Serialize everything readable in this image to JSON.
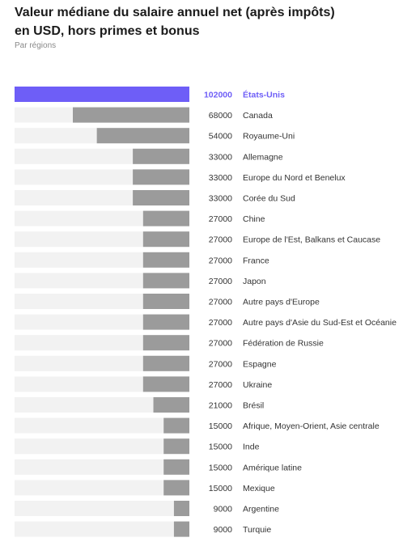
{
  "header": {
    "title_line1": "Valeur médiane du salaire annuel net (après impôts)",
    "title_line2": "en USD, hors primes et bonus",
    "subtitle": "Par régions"
  },
  "colors": {
    "highlight": "#6e5ef7",
    "bar": "#9b9b9b",
    "track": "#f2f2f2",
    "label": "#333333"
  },
  "chart_data": {
    "type": "bar",
    "orientation": "horizontal",
    "bar_direction": "right-to-left",
    "title": "Valeur médiane du salaire annuel net (après impôts) en USD, hors primes et bonus",
    "subtitle": "Par régions",
    "xlim": [
      0,
      102000
    ],
    "grid": false,
    "highlight_index": 0,
    "categories": [
      "États-Unis",
      "Canada",
      "Royaume-Uni",
      "Allemagne",
      "Europe du Nord et Benelux",
      "Corée du Sud",
      "Chine",
      "Europe de l'Est, Balkans et Caucase",
      "France",
      "Japon",
      "Autre pays d'Europe",
      "Autre pays d'Asie du Sud-Est et Océanie",
      "Fédération de Russie",
      "Espagne",
      "Ukraine",
      "Brésil",
      "Afrique, Moyen-Orient, Asie centrale",
      "Inde",
      "Amérique latine",
      "Mexique",
      "Argentine",
      "Turquie"
    ],
    "values": [
      102000,
      68000,
      54000,
      33000,
      33000,
      33000,
      27000,
      27000,
      27000,
      27000,
      27000,
      27000,
      27000,
      27000,
      27000,
      21000,
      15000,
      15000,
      15000,
      15000,
      9000,
      9000
    ]
  }
}
